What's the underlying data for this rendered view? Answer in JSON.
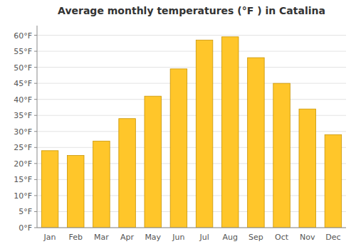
{
  "chart_data": {
    "type": "bar",
    "title": "Average monthly temperatures (°F ) in Catalina",
    "categories": [
      "Jan",
      "Feb",
      "Mar",
      "Apr",
      "May",
      "Jun",
      "Jul",
      "Aug",
      "Sep",
      "Oct",
      "Nov",
      "Dec"
    ],
    "values": [
      24,
      22.5,
      27,
      34,
      41,
      49.5,
      58.5,
      59.5,
      53,
      45,
      37,
      29
    ],
    "color": "#FFC62A",
    "ylim": [
      0,
      63
    ],
    "yticks": [
      {
        "value": 0,
        "label": "0°F"
      },
      {
        "value": 5,
        "label": "5°F"
      },
      {
        "value": 10,
        "label": "10°F"
      },
      {
        "value": 15,
        "label": "15°F"
      },
      {
        "value": 20,
        "label": "20°F"
      },
      {
        "value": 25,
        "label": "25°F"
      },
      {
        "value": 30,
        "label": "30°F"
      },
      {
        "value": 35,
        "label": "35°F"
      },
      {
        "value": 40,
        "label": "40°F"
      },
      {
        "value": 45,
        "label": "45°F"
      },
      {
        "value": 50,
        "label": "50°F"
      },
      {
        "value": 55,
        "label": "55°F"
      },
      {
        "value": 60,
        "label": "60°F"
      }
    ],
    "grid": true
  }
}
